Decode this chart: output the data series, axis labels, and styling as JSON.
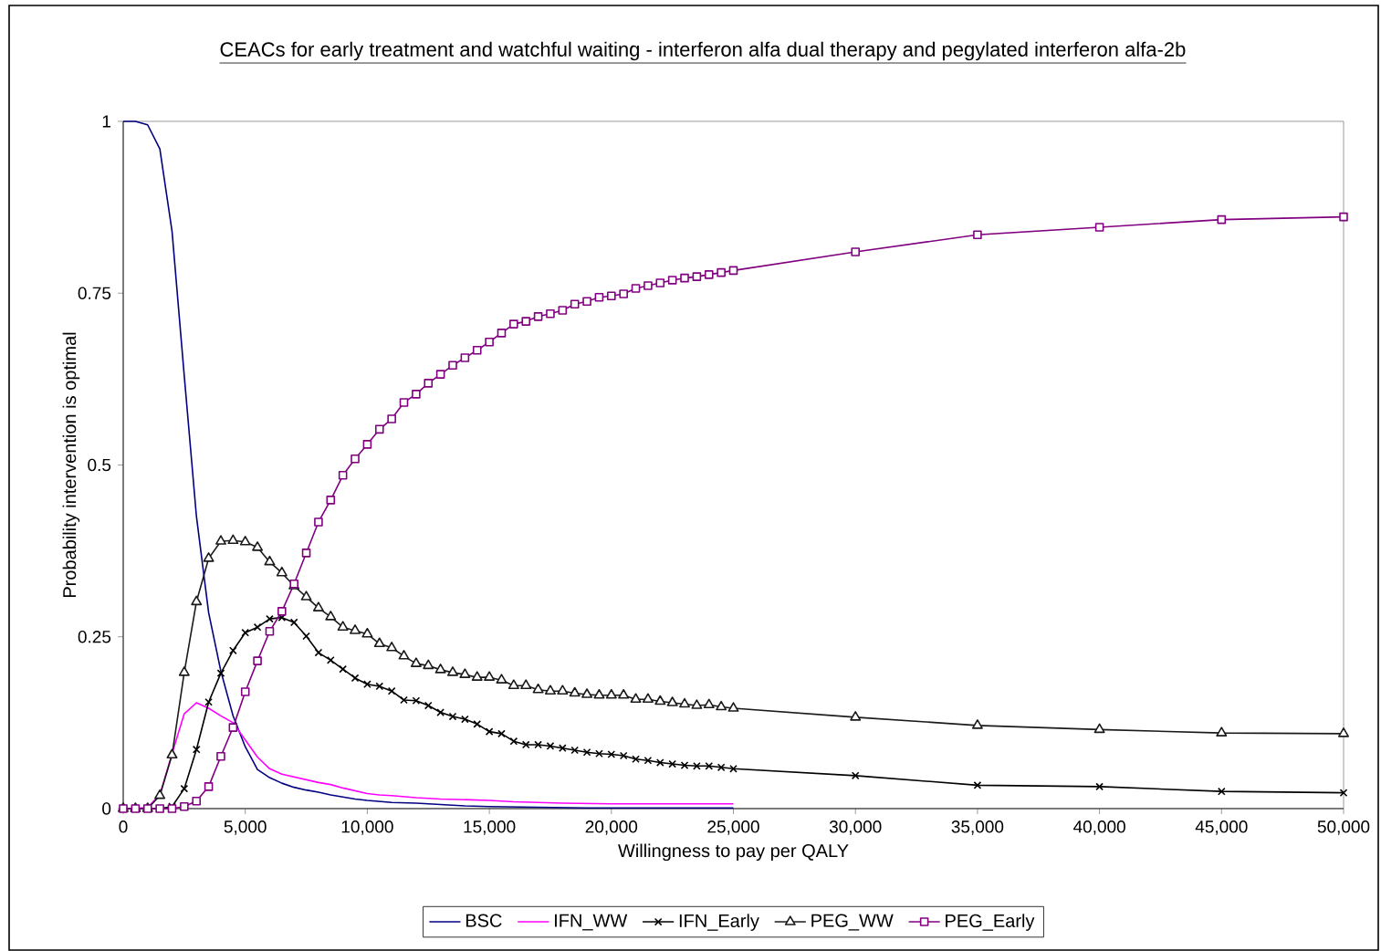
{
  "chart_data": {
    "type": "line",
    "title": "CEACs for early treatment and watchful waiting - interferon alfa dual therapy and pegylated interferon alfa-2b",
    "xlabel": "Willingness to pay per QALY",
    "ylabel": "Probability intervention is optimal",
    "x": [
      0,
      500,
      1000,
      1500,
      2000,
      2500,
      3000,
      3500,
      4000,
      4500,
      5000,
      5500,
      6000,
      6500,
      7000,
      7500,
      8000,
      8500,
      9000,
      9500,
      10000,
      10500,
      11000,
      11500,
      12000,
      12500,
      13000,
      13500,
      14000,
      14500,
      15000,
      15500,
      16000,
      16500,
      17000,
      17500,
      18000,
      18500,
      19000,
      19500,
      20000,
      20500,
      21000,
      21500,
      22000,
      22500,
      23000,
      23500,
      24000,
      24500,
      25000,
      30000,
      35000,
      40000,
      45000,
      50000
    ],
    "xlim": [
      0,
      50000
    ],
    "xticks": [
      0,
      {
        "value": 5000,
        "label": "5,000"
      },
      {
        "value": 10000,
        "label": "10,000"
      },
      {
        "value": 15000,
        "label": "15,000"
      },
      {
        "value": 20000,
        "label": "20,000"
      },
      {
        "value": 25000,
        "label": "25,000"
      },
      {
        "value": 30000,
        "label": "30,000"
      },
      {
        "value": 35000,
        "label": "35,000"
      },
      {
        "value": 40000,
        "label": "40,000"
      },
      {
        "value": 45000,
        "label": "45,000"
      },
      {
        "value": 50000,
        "label": "50,000"
      }
    ],
    "ylim": [
      0,
      1
    ],
    "yticks": [
      0,
      0.25,
      0.5,
      0.75,
      1
    ],
    "grid": false,
    "legend": "bottom",
    "series": [
      {
        "name": "BSC",
        "color": "#000080",
        "marker": "none",
        "x": [
          0,
          500,
          1000,
          1500,
          2000,
          2500,
          3000,
          3500,
          4000,
          4500,
          5000,
          5500,
          6000,
          6500,
          7000,
          7500,
          8000,
          8500,
          9000,
          9500,
          10000,
          11000,
          12000,
          13000,
          14000,
          15000,
          17000,
          19000,
          20000,
          25000
        ],
        "values": [
          1,
          1,
          0.995,
          0.96,
          0.84,
          0.63,
          0.425,
          0.285,
          0.2,
          0.135,
          0.09,
          0.057,
          0.045,
          0.037,
          0.031,
          0.027,
          0.024,
          0.02,
          0.017,
          0.014,
          0.012,
          0.009,
          0.008,
          0.006,
          0.004,
          0.003,
          0.002,
          0.001,
          0.001,
          0.001
        ]
      },
      {
        "name": "IFN_WW",
        "color": "#ff00ff",
        "marker": "none",
        "x": [
          0,
          500,
          1000,
          1500,
          2000,
          2500,
          3000,
          3500,
          4000,
          4500,
          5000,
          5500,
          6000,
          6500,
          7000,
          7500,
          8000,
          8500,
          9000,
          9500,
          10000,
          10500,
          11000,
          12000,
          13000,
          14000,
          15000,
          16000,
          18000,
          20000,
          25000
        ],
        "values": [
          0,
          0,
          0.002,
          0.02,
          0.08,
          0.138,
          0.154,
          0.146,
          0.135,
          0.125,
          0.1,
          0.075,
          0.058,
          0.05,
          0.046,
          0.042,
          0.038,
          0.035,
          0.03,
          0.026,
          0.022,
          0.02,
          0.019,
          0.016,
          0.014,
          0.013,
          0.012,
          0.01,
          0.008,
          0.007,
          0.007
        ]
      },
      {
        "name": "IFN_Early",
        "color": "#000000",
        "marker": "cross",
        "x": [
          0,
          500,
          1000,
          1500,
          2000,
          2500,
          3000,
          3500,
          4000,
          4500,
          5000,
          5500,
          6000,
          6500,
          7000,
          7500,
          8000,
          8500,
          9000,
          9500,
          10000,
          10500,
          11000,
          11500,
          12000,
          12500,
          13000,
          13500,
          14000,
          14500,
          15000,
          15500,
          16000,
          16500,
          17000,
          17500,
          18000,
          18500,
          19000,
          19500,
          20000,
          20500,
          21000,
          21500,
          22000,
          22500,
          23000,
          23500,
          24000,
          24500,
          25000,
          30000,
          35000,
          40000,
          45000,
          50000
        ],
        "values": [
          0,
          0,
          0,
          0,
          0.003,
          0.029,
          0.086,
          0.155,
          0.197,
          0.23,
          0.256,
          0.264,
          0.276,
          0.278,
          0.271,
          0.251,
          0.227,
          0.216,
          0.203,
          0.19,
          0.181,
          0.178,
          0.171,
          0.158,
          0.157,
          0.15,
          0.14,
          0.134,
          0.13,
          0.123,
          0.112,
          0.109,
          0.098,
          0.093,
          0.093,
          0.091,
          0.088,
          0.085,
          0.082,
          0.08,
          0.079,
          0.077,
          0.072,
          0.07,
          0.067,
          0.065,
          0.063,
          0.062,
          0.062,
          0.06,
          0.058,
          0.048,
          0.034,
          0.032,
          0.025,
          0.023
        ]
      },
      {
        "name": "PEG_WW",
        "color": "#1a1a1a",
        "marker": "triangle",
        "values": [
          0,
          0,
          0,
          0.019,
          0.078,
          0.198,
          0.301,
          0.364,
          0.389,
          0.39,
          0.388,
          0.38,
          0.359,
          0.343,
          0.324,
          0.308,
          0.292,
          0.279,
          0.264,
          0.259,
          0.254,
          0.24,
          0.234,
          0.222,
          0.211,
          0.208,
          0.202,
          0.198,
          0.195,
          0.191,
          0.191,
          0.187,
          0.179,
          0.179,
          0.173,
          0.171,
          0.171,
          0.168,
          0.166,
          0.165,
          0.165,
          0.165,
          0.159,
          0.159,
          0.156,
          0.154,
          0.152,
          0.15,
          0.151,
          0.148,
          0.146,
          0.133,
          0.121,
          0.115,
          0.11,
          0.109
        ]
      },
      {
        "name": "PEG_Early",
        "color": "#800080",
        "marker": "square",
        "values": [
          0,
          0,
          0,
          0,
          0,
          0.003,
          0.011,
          0.032,
          0.076,
          0.118,
          0.17,
          0.215,
          0.258,
          0.287,
          0.327,
          0.372,
          0.417,
          0.449,
          0.485,
          0.509,
          0.53,
          0.552,
          0.567,
          0.591,
          0.603,
          0.619,
          0.632,
          0.645,
          0.656,
          0.667,
          0.679,
          0.692,
          0.705,
          0.709,
          0.716,
          0.72,
          0.725,
          0.734,
          0.738,
          0.744,
          0.746,
          0.749,
          0.757,
          0.761,
          0.765,
          0.769,
          0.772,
          0.774,
          0.777,
          0.78,
          0.783,
          0.81,
          0.835,
          0.846,
          0.857,
          0.861
        ]
      }
    ]
  }
}
